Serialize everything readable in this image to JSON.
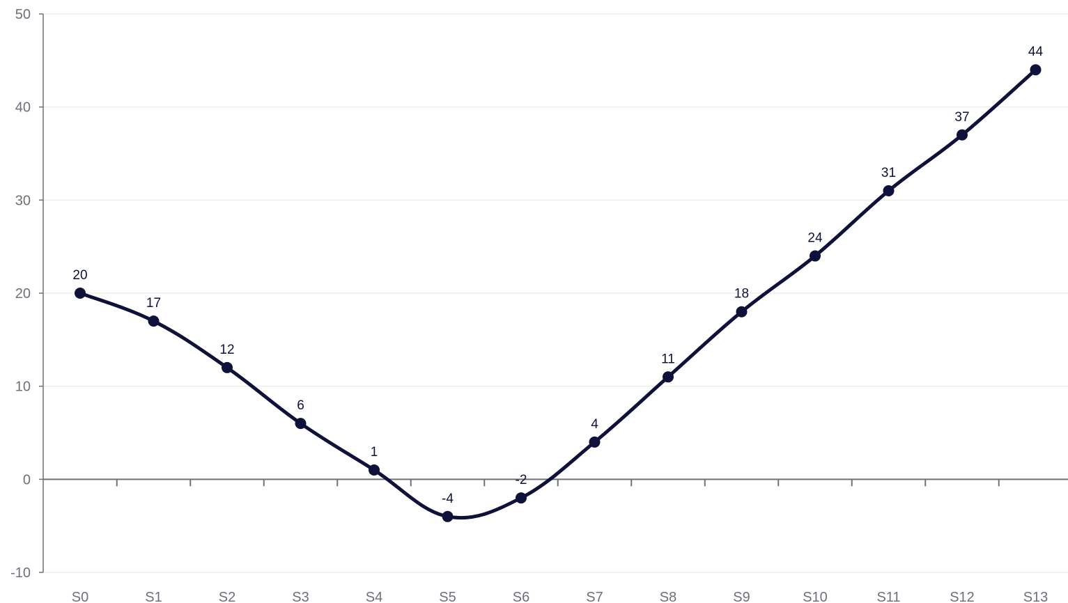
{
  "chart_data": {
    "type": "line",
    "title": "",
    "xlabel": "",
    "ylabel": "",
    "categories": [
      "S0",
      "S1",
      "S2",
      "S3",
      "S4",
      "S5",
      "S6",
      "S7",
      "S8",
      "S9",
      "S10",
      "S11",
      "S12",
      "S13"
    ],
    "series": [
      {
        "values": [
          20,
          17,
          12,
          6,
          1,
          -4,
          -2,
          4,
          11,
          18,
          24,
          31,
          37,
          44
        ]
      }
    ],
    "ylim": [
      -10,
      50
    ],
    "yticks": [
      -10,
      0,
      10,
      20,
      30,
      40,
      50
    ],
    "smooth": true,
    "grid": true,
    "data_labels": true,
    "legend": "none",
    "colors": {
      "line": "#0e1139",
      "axis": "#6e7079",
      "grid": "#e6e6e6",
      "label": "#0e1139"
    }
  }
}
